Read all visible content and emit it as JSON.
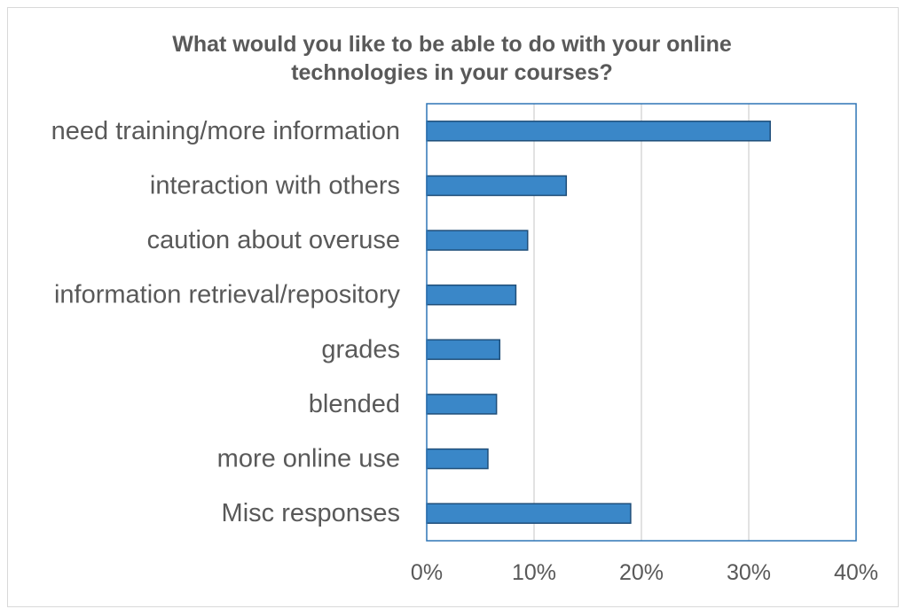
{
  "chart_data": {
    "type": "bar",
    "orientation": "horizontal",
    "title_lines": [
      "What would you like to be able to do with your online",
      "technologies in your courses?"
    ],
    "categories": [
      "need training/more information",
      "interaction with others",
      "caution about overuse",
      "information retrieval/repository",
      "grades",
      "blended",
      "more online use",
      "Misc responses"
    ],
    "values": [
      32,
      13,
      9.4,
      8.3,
      6.8,
      6.5,
      5.7,
      19
    ],
    "x_ticks": [
      "0%",
      "10%",
      "20%",
      "30%",
      "40%"
    ],
    "xlim": [
      0,
      40
    ],
    "unit": "%",
    "grid": "vertical",
    "bar_color": "#3a87c8",
    "bar_edge_color": "#1f4e79",
    "plot_border_color": "#2e75b6",
    "gridline_color": "#d9d9d9"
  }
}
